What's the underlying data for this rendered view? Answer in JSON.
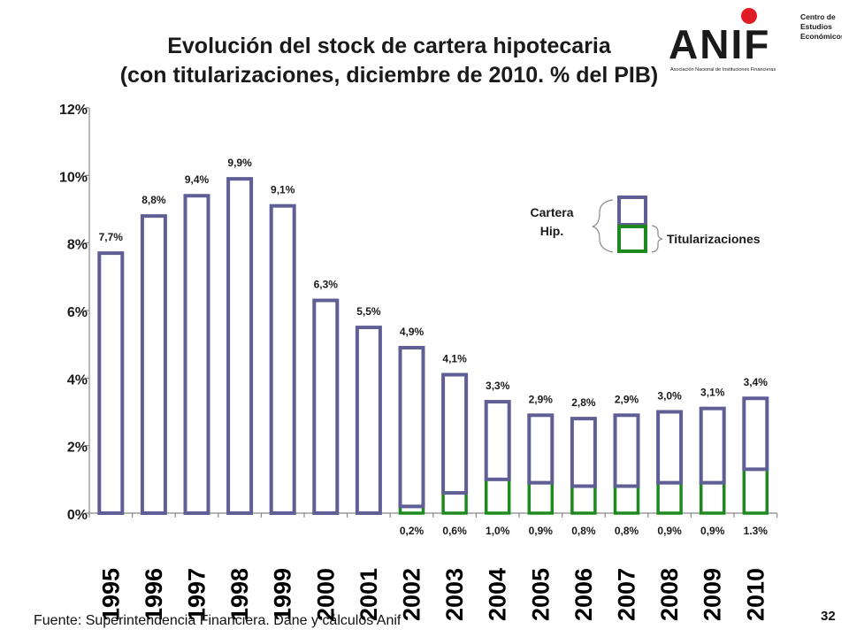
{
  "title_line1": "Evolución del stock de cartera hipotecaria",
  "title_line2": "(con titularizaciones, diciembre de 2010. % del PIB)",
  "source": "Fuente: Superintendencia Financiera. Dane y cálculos Anif",
  "page_number": "32",
  "logo": {
    "brand": "ANIF",
    "subtitle": "Asociación Nacional de Instituciones Financieras",
    "centro_lines": [
      "Centro de",
      "Estudios",
      "Económicos"
    ]
  },
  "legend": {
    "cartera_lines": [
      "Cartera",
      "Hip."
    ],
    "titularizaciones": "Titularizaciones"
  },
  "colors": {
    "cartera": "#5f5f96",
    "titularizaciones": "#1e8a1e",
    "logo_red": "#e01d24"
  },
  "chart_data": {
    "type": "bar",
    "stacked": true,
    "categories": [
      "1995",
      "1996",
      "1997",
      "1998",
      "1999",
      "2000",
      "2001",
      "2002",
      "2003",
      "2004",
      "2005",
      "2006",
      "2007",
      "2008",
      "2009",
      "2010"
    ],
    "series": [
      {
        "name": "Cartera Hip.",
        "values": [
          7.7,
          8.8,
          9.4,
          9.9,
          9.1,
          6.3,
          5.5,
          4.7,
          3.5,
          2.3,
          2.0,
          2.0,
          2.1,
          2.1,
          2.2,
          2.1
        ]
      },
      {
        "name": "Titularizaciones",
        "values": [
          0,
          0,
          0,
          0,
          0,
          0,
          0,
          0.2,
          0.6,
          1.0,
          0.9,
          0.8,
          0.8,
          0.9,
          0.9,
          1.3
        ]
      }
    ],
    "total_labels": [
      "7,7%",
      "8,8%",
      "9,4%",
      "9,9%",
      "9,1%",
      "6,3%",
      "5,5%",
      "4,9%",
      "4,1%",
      "3,3%",
      "2,9%",
      "2,8%",
      "2,9%",
      "3,0%",
      "3,1%",
      "3,4%"
    ],
    "titularizacion_labels": [
      "",
      "",
      "",
      "",
      "",
      "",
      "",
      "0,2%",
      "0,6%",
      "1,0%",
      "0,9%",
      "0,8%",
      "0,8%",
      "0,9%",
      "0,9%",
      "1.3%"
    ],
    "yticks": [
      "0%",
      "2%",
      "4%",
      "6%",
      "8%",
      "10%",
      "12%"
    ],
    "ylim": [
      0,
      12
    ],
    "grid": false
  }
}
